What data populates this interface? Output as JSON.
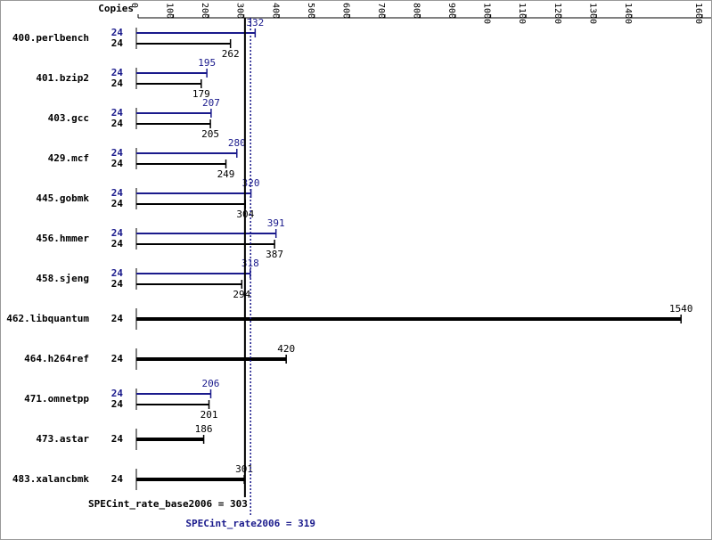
{
  "chart_data": {
    "type": "bar",
    "orientation": "horizontal",
    "copies_header": "Copies",
    "categories": [
      "400.perlbench",
      "401.bzip2",
      "403.gcc",
      "429.mcf",
      "445.gobmk",
      "456.hmmer",
      "458.sjeng",
      "462.libquantum",
      "464.h264ref",
      "471.omnetpp",
      "473.astar",
      "483.xalancbmk"
    ],
    "series": [
      {
        "color": "#1a1a8c",
        "values": [
          332,
          195,
          207,
          280,
          320,
          391,
          318,
          null,
          null,
          206,
          null,
          null
        ],
        "copies": [
          24,
          24,
          24,
          24,
          24,
          24,
          24,
          null,
          null,
          24,
          null,
          null
        ]
      },
      {
        "color": "#000000",
        "values": [
          262,
          179,
          205,
          249,
          304,
          387,
          294,
          1540,
          420,
          201,
          186,
          301
        ],
        "copies": [
          24,
          24,
          24,
          24,
          24,
          24,
          24,
          24,
          24,
          24,
          24,
          24
        ]
      }
    ],
    "xlim": [
      0,
      1600
    ],
    "xticks": [
      0,
      100,
      200,
      300,
      400,
      500,
      600,
      700,
      800,
      900,
      1000,
      1100,
      1200,
      1300,
      1400,
      1600
    ],
    "base_summary": {
      "value": 303,
      "label": "SPECint_rate_base2006 = 303",
      "color": "#000000"
    },
    "peak_summary": {
      "value": 319,
      "label": "SPECint_rate2006 = 319",
      "color": "#1a1a8c"
    }
  }
}
